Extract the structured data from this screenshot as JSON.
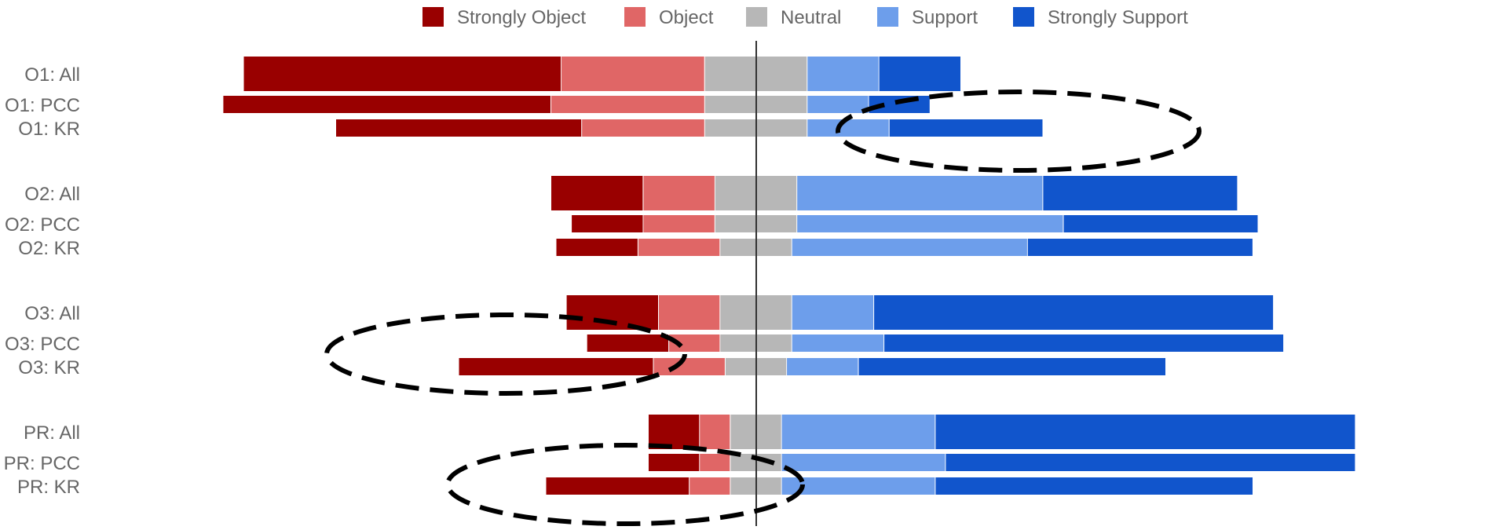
{
  "chart_data": {
    "type": "bar",
    "stacked": true,
    "orientation": "horizontal",
    "diverging": true,
    "legend_position": "top",
    "series": [
      {
        "name": "Strongly Object",
        "color": "#990000"
      },
      {
        "name": "Object",
        "color": "#e06666"
      },
      {
        "name": "Neutral",
        "color": "#b7b7b7"
      },
      {
        "name": "Support",
        "color": "#6d9eeb"
      },
      {
        "name": "Strongly Support",
        "color": "#1155cc"
      }
    ],
    "rows": [
      {
        "label": "O1: All",
        "group": 1,
        "variant": "all",
        "values": [
          0.31,
          0.14,
          0.1,
          0.07,
          0.08
        ]
      },
      {
        "label": "O1: PCC",
        "group": 1,
        "variant": "sub",
        "values": [
          0.32,
          0.15,
          0.1,
          0.06,
          0.06
        ]
      },
      {
        "label": "O1: KR",
        "group": 1,
        "variant": "sub",
        "values": [
          0.24,
          0.12,
          0.1,
          0.08,
          0.15
        ]
      },
      {
        "label": "O2: All",
        "group": 2,
        "variant": "all",
        "values": [
          0.09,
          0.07,
          0.08,
          0.24,
          0.19
        ]
      },
      {
        "label": "O2: PCC",
        "group": 2,
        "variant": "sub",
        "values": [
          0.07,
          0.07,
          0.08,
          0.26,
          0.19
        ]
      },
      {
        "label": "O2: KR",
        "group": 2,
        "variant": "sub",
        "values": [
          0.08,
          0.08,
          0.07,
          0.23,
          0.22
        ]
      },
      {
        "label": "O3: All",
        "group": 3,
        "variant": "all",
        "values": [
          0.09,
          0.06,
          0.07,
          0.08,
          0.39
        ]
      },
      {
        "label": "O3: PCC",
        "group": 3,
        "variant": "sub",
        "values": [
          0.08,
          0.05,
          0.07,
          0.09,
          0.39
        ]
      },
      {
        "label": "O3: KR",
        "group": 3,
        "variant": "sub",
        "values": [
          0.19,
          0.07,
          0.06,
          0.07,
          0.3
        ]
      },
      {
        "label": "PR: All",
        "group": 4,
        "variant": "all",
        "values": [
          0.05,
          0.03,
          0.05,
          0.15,
          0.41
        ]
      },
      {
        "label": "PR: PCC",
        "group": 4,
        "variant": "sub",
        "values": [
          0.05,
          0.03,
          0.05,
          0.16,
          0.4
        ]
      },
      {
        "label": "PR: KR",
        "group": 4,
        "variant": "sub",
        "values": [
          0.14,
          0.04,
          0.05,
          0.15,
          0.31
        ]
      }
    ],
    "annotations": [
      {
        "type": "dashed-ellipse",
        "around": [
          "O1: PCC",
          "O1: KR"
        ],
        "segment": "support"
      },
      {
        "type": "dashed-ellipse",
        "around": [
          "O3: PCC",
          "O3: KR"
        ],
        "segment": "object"
      },
      {
        "type": "dashed-ellipse",
        "around": [
          "PR: PCC",
          "PR: KR"
        ],
        "segment": "object"
      }
    ]
  }
}
